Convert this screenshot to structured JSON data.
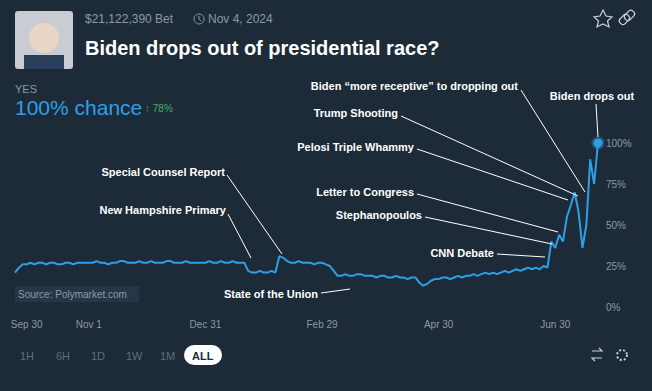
{
  "chart_data": {
    "type": "line",
    "title": "Biden drops out of presidential race?",
    "header": {
      "volume": "$21,122,390 Bet",
      "date": "Nov 4, 2024",
      "outcome": "YES",
      "chance": "100% chance",
      "change": "↑ 78%"
    },
    "source": "Source: Polymarket.com",
    "range_buttons": [
      "1H",
      "6H",
      "1D",
      "1W",
      "1M",
      "ALL"
    ],
    "active_range": "ALL",
    "annotations": [
      "Biden “more receptive” to dropping out",
      "Biden drops out",
      "Trump Shooting",
      "Pelosi Triple Whammy",
      "Special Counsel Report",
      "New Hampshire Primary",
      "Letter to Congress",
      "Stephanopoulos",
      "CNN Debate",
      "State of the Union"
    ],
    "categories": [
      null,
      null,
      null,
      "Sep 30",
      null,
      null,
      null,
      null,
      null,
      null,
      null,
      null,
      null,
      null,
      null,
      null,
      null,
      null,
      null,
      "Nov 1",
      null,
      null,
      null,
      null,
      null,
      null,
      null,
      null,
      null,
      null,
      null,
      null,
      null,
      null,
      null,
      null,
      null,
      null,
      null,
      null,
      null,
      null,
      null,
      null,
      null,
      null,
      null,
      null,
      null,
      "Dec 31",
      null,
      null,
      null,
      null,
      null,
      null,
      null,
      null,
      null,
      null,
      null,
      null,
      null,
      null,
      null,
      null,
      null,
      null,
      null,
      null,
      null,
      null,
      null,
      null,
      null,
      null,
      null,
      null,
      null,
      "Feb 29",
      null,
      null,
      null,
      null,
      null,
      null,
      null,
      null,
      null,
      null,
      null,
      null,
      null,
      null,
      null,
      null,
      null,
      null,
      null,
      null,
      null,
      null,
      null,
      null,
      null,
      null,
      null,
      null,
      null,
      "Apr 30",
      null,
      null,
      null,
      null,
      null,
      null,
      null,
      null,
      null,
      null,
      null,
      null,
      null,
      null,
      null,
      null,
      null,
      null,
      null,
      null,
      null,
      null,
      null,
      null,
      null,
      null,
      null,
      null,
      null,
      "Jun 30",
      null,
      null,
      null,
      null,
      null,
      null,
      null,
      null,
      null,
      null,
      null
    ],
    "values": [
      21,
      24,
      26,
      26,
      27,
      26,
      27,
      27,
      26,
      27,
      27,
      26,
      26,
      27,
      27,
      26,
      27,
      27,
      27,
      27,
      27,
      28,
      27,
      27,
      26,
      27,
      27,
      28,
      28,
      27,
      27,
      27,
      28,
      27,
      27,
      28,
      27,
      27,
      27,
      28,
      28,
      27,
      27,
      27,
      28,
      27,
      27,
      27,
      27,
      27,
      28,
      27,
      27,
      28,
      27,
      27,
      28,
      27,
      27,
      27,
      22,
      21,
      21,
      22,
      21,
      21,
      22,
      21,
      31,
      30,
      28,
      27,
      27,
      28,
      27,
      27,
      27,
      26,
      27,
      27,
      26,
      25,
      22,
      19,
      19,
      20,
      19,
      19,
      20,
      20,
      19,
      19,
      19,
      18,
      19,
      19,
      18,
      18,
      19,
      18,
      18,
      17,
      18,
      18,
      15,
      13,
      14,
      16,
      17,
      17,
      18,
      18,
      17,
      18,
      19,
      18,
      19,
      19,
      20,
      19,
      20,
      21,
      20,
      21,
      20,
      21,
      22,
      21,
      22,
      23,
      22,
      23,
      24,
      23,
      24,
      23,
      25,
      24,
      40,
      36,
      44,
      40,
      55,
      62,
      70,
      58,
      36,
      50,
      90,
      75,
      100
    ],
    "color": "#2e9fe6",
    "ylim": [
      0,
      100
    ],
    "yticks": [
      {
        "value": 0,
        "label": "0%"
      },
      {
        "value": 25,
        "label": "25%"
      },
      {
        "value": 50,
        "label": "50%"
      },
      {
        "value": 75,
        "label": "75%"
      },
      {
        "value": 100,
        "label": "100%"
      }
    ],
    "grid": false
  }
}
